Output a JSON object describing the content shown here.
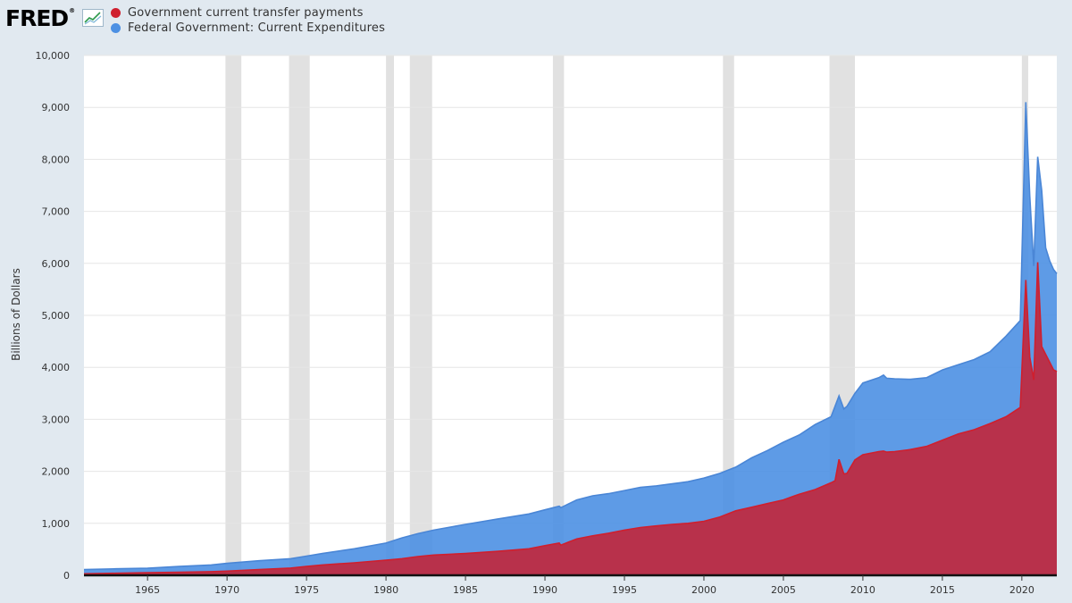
{
  "header": {
    "logo_text": "FRED",
    "logo_mark": "®",
    "logo_icon": "line-chart-icon"
  },
  "chart_data": {
    "type": "area",
    "ylabel": "Billions of Dollars",
    "xlabel": "",
    "xlim": [
      1961,
      2022.2
    ],
    "ylim": [
      0,
      10000
    ],
    "yticks": [
      0,
      1000,
      2000,
      3000,
      4000,
      5000,
      6000,
      7000,
      8000,
      9000,
      10000
    ],
    "ytick_labels": [
      "0",
      "1,000",
      "2,000",
      "3,000",
      "4,000",
      "5,000",
      "6,000",
      "7,000",
      "8,000",
      "9,000",
      "10,000"
    ],
    "xticks": [
      1965,
      1970,
      1975,
      1980,
      1985,
      1990,
      1995,
      2000,
      2005,
      2010,
      2015,
      2020
    ],
    "xtick_labels": [
      "1965",
      "1970",
      "1975",
      "1980",
      "1985",
      "1990",
      "1995",
      "2000",
      "2005",
      "2010",
      "2015",
      "2020"
    ],
    "grid": true,
    "legend_position": "top-left",
    "recessions": [
      [
        1969.9,
        1970.9
      ],
      [
        1973.9,
        1975.2
      ],
      [
        1980.0,
        1980.5
      ],
      [
        1981.5,
        1982.9
      ],
      [
        1990.5,
        1991.2
      ],
      [
        2001.2,
        2001.9
      ],
      [
        2007.9,
        2009.5
      ],
      [
        2020.0,
        2020.4
      ]
    ],
    "series": [
      {
        "name": "Federal Government: Current Expenditures",
        "color": "#4c90e3",
        "line_color": "#4a86d6",
        "x": [
          1961,
          1963,
          1965,
          1967,
          1969,
          1970,
          1972,
          1974,
          1975,
          1976,
          1978,
          1980,
          1981,
          1982,
          1983,
          1985,
          1987,
          1989,
          1990,
          1990.9,
          1991,
          1992,
          1993,
          1994,
          1995,
          1996,
          1997,
          1998,
          1999,
          2000,
          2001,
          2002,
          2003,
          2004,
          2005,
          2006,
          2007,
          2008,
          2008.5,
          2008.8,
          2009,
          2009.5,
          2010,
          2011,
          2011.3,
          2011.5,
          2012,
          2013,
          2014,
          2015,
          2016,
          2017,
          2018,
          2019,
          2019.9,
          2020.25,
          2020.5,
          2020.75,
          2021.0,
          2021.25,
          2021.5,
          2021.75,
          2022.0,
          2022.2
        ],
        "values": [
          110,
          125,
          135,
          170,
          200,
          230,
          280,
          320,
          370,
          420,
          510,
          620,
          720,
          800,
          870,
          980,
          1080,
          1180,
          1260,
          1330,
          1300,
          1450,
          1530,
          1570,
          1630,
          1690,
          1720,
          1760,
          1800,
          1870,
          1960,
          2080,
          2260,
          2400,
          2560,
          2700,
          2900,
          3050,
          3450,
          3200,
          3250,
          3500,
          3700,
          3800,
          3850,
          3790,
          3780,
          3770,
          3800,
          3950,
          4050,
          4150,
          4300,
          4600,
          4900,
          9100,
          7300,
          5950,
          8050,
          7400,
          6300,
          6050,
          5880,
          5800
        ]
      },
      {
        "name": "Government current transfer payments",
        "color": "#c2263a",
        "line_color": "#cf1f2e",
        "x": [
          1961,
          1963,
          1965,
          1967,
          1969,
          1970,
          1972,
          1974,
          1975,
          1976,
          1978,
          1980,
          1981,
          1982,
          1983,
          1985,
          1987,
          1989,
          1990,
          1990.9,
          1991,
          1992,
          1993,
          1994,
          1995,
          1996,
          1997,
          1998,
          1999,
          2000,
          2001,
          2002,
          2003,
          2004,
          2005,
          2006,
          2007,
          2008,
          2008.25,
          2008.5,
          2008.8,
          2009,
          2009.5,
          2010,
          2011,
          2011.3,
          2011.5,
          2012,
          2013,
          2014,
          2015,
          2016,
          2017,
          2018,
          2019,
          2019.9,
          2020.25,
          2020.5,
          2020.75,
          2021.0,
          2021.25,
          2021.5,
          2021.75,
          2022.0,
          2022.2
        ],
        "values": [
          30,
          40,
          50,
          60,
          70,
          80,
          110,
          140,
          170,
          200,
          240,
          290,
          320,
          360,
          390,
          420,
          460,
          510,
          570,
          620,
          580,
          700,
          760,
          810,
          870,
          920,
          950,
          980,
          1000,
          1040,
          1120,
          1240,
          1310,
          1380,
          1450,
          1560,
          1650,
          1780,
          1820,
          2230,
          1950,
          1960,
          2220,
          2320,
          2380,
          2390,
          2370,
          2380,
          2420,
          2480,
          2600,
          2720,
          2800,
          2920,
          3050,
          3230,
          5680,
          4200,
          3760,
          6020,
          4400,
          4250,
          4100,
          3950,
          3920
        ]
      }
    ]
  }
}
